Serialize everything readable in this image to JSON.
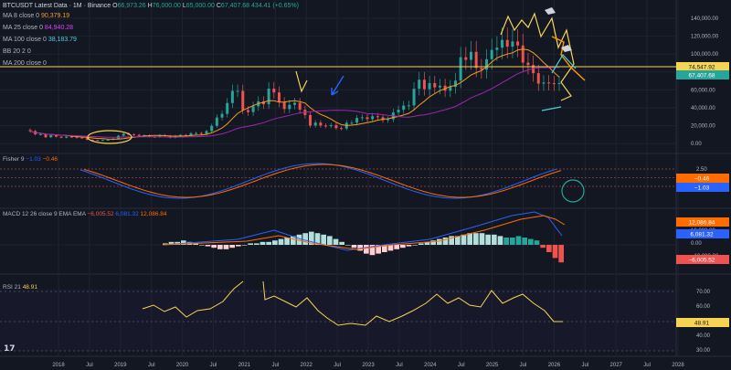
{
  "header": {
    "symbol": "BTCUSDT",
    "source": "Latest Data · 1M · Binance",
    "open_label": "O",
    "open": "66,973.26",
    "high_label": "H",
    "high": "76,000.00",
    "low_label": "L",
    "low": "65,000.00",
    "close_label": "C",
    "close": "67,407.68",
    "change": "434.41 (+0.65%)"
  },
  "indicators": [
    {
      "label": "MA 8 close 0",
      "value": "90,379.19",
      "color": "#f59b22"
    },
    {
      "label": "MA 25 close 0",
      "value": "84,940.28",
      "color": "#e040fb"
    },
    {
      "label": "MA 100 close 0",
      "value": "38,183.79",
      "color": "#4dd0e1"
    },
    {
      "label": "BB 20 2 0",
      "value": "",
      "color": "#b2b5be"
    },
    {
      "label": "MA 200 close 0",
      "value": "",
      "color": "#b2b5be"
    }
  ],
  "fisher": {
    "label": "Fisher 9",
    "v1": "−1.03",
    "v2": "−0.46",
    "c1": "#2962ff",
    "c2": "#ff6d00"
  },
  "macd": {
    "label": "MACD 12 26 close 9 EMA EMA",
    "v1": "−6,005.52",
    "v2": "6,081.32",
    "v3": "12,086.84"
  },
  "rsi": {
    "label": "RSI 21",
    "value": "48.91"
  },
  "price_axis": {
    "ticks": [
      "140,000.00",
      "120,000.00",
      "100,000.00",
      "80,000.00",
      "60,000.00",
      "40,000.00",
      "20,000.00",
      "0.00"
    ],
    "badges": {
      "level": "74,547.92",
      "close": "67,407.68"
    }
  },
  "fisher_axis": {
    "ticks": [
      "2.50",
      "0.00",
      "−2.50"
    ],
    "badges": [
      "−0.46",
      "−1.03"
    ]
  },
  "macd_axis": {
    "ticks": [
      "10,000.00",
      "0.00",
      "−10,000.00"
    ],
    "badges": [
      "12,086.84",
      "6,081.32",
      "−6,005.52"
    ]
  },
  "rsi_axis": {
    "ticks": [
      "70.00",
      "60.00",
      "50.00",
      "40.00",
      "30.00"
    ],
    "badge": "48.91"
  },
  "time_axis": [
    "2018",
    "Jul",
    "2019",
    "Jul",
    "2020",
    "Jul",
    "2021",
    "Jul",
    "2022",
    "Jul",
    "2023",
    "Jul",
    "2024",
    "Jul",
    "2025",
    "Jul",
    "2026",
    "Jul",
    "2027",
    "Jul",
    "2028"
  ],
  "logo": "17",
  "colors": {
    "up": "#26a69a",
    "down": "#ef5350",
    "bg": "#131722",
    "level": "#f7d354"
  }
}
